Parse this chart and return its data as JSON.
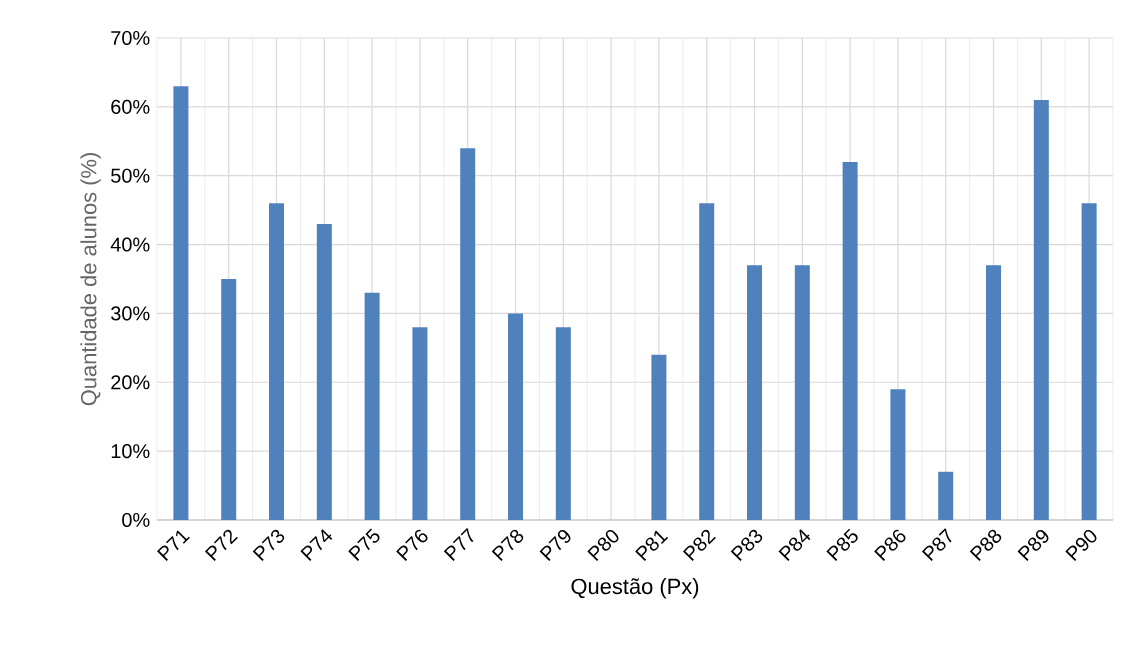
{
  "chart_data": {
    "type": "bar",
    "xlabel": "Questão (Px)",
    "ylabel": "Quantidade de alunos (%)",
    "categories": [
      "P71",
      "P72",
      "P73",
      "P74",
      "P75",
      "P76",
      "P77",
      "P78",
      "P79",
      "P80",
      "P81",
      "P82",
      "P83",
      "P84",
      "P85",
      "P86",
      "P87",
      "P88",
      "P89",
      "P90"
    ],
    "values": [
      63,
      35,
      46,
      43,
      33,
      28,
      54,
      30,
      28,
      0,
      24,
      46,
      37,
      37,
      52,
      19,
      7,
      37,
      61,
      46
    ],
    "color": "#4f81bd",
    "ylim": [
      0,
      70
    ],
    "yticks": [
      {
        "value": 0,
        "label": "0%"
      },
      {
        "value": 10,
        "label": "10%"
      },
      {
        "value": 20,
        "label": "20%"
      },
      {
        "value": 30,
        "label": "30%"
      },
      {
        "value": 40,
        "label": "40%"
      },
      {
        "value": 50,
        "label": "50%"
      },
      {
        "value": 60,
        "label": "60%"
      },
      {
        "value": 70,
        "label": "70%"
      }
    ],
    "grid": true
  }
}
